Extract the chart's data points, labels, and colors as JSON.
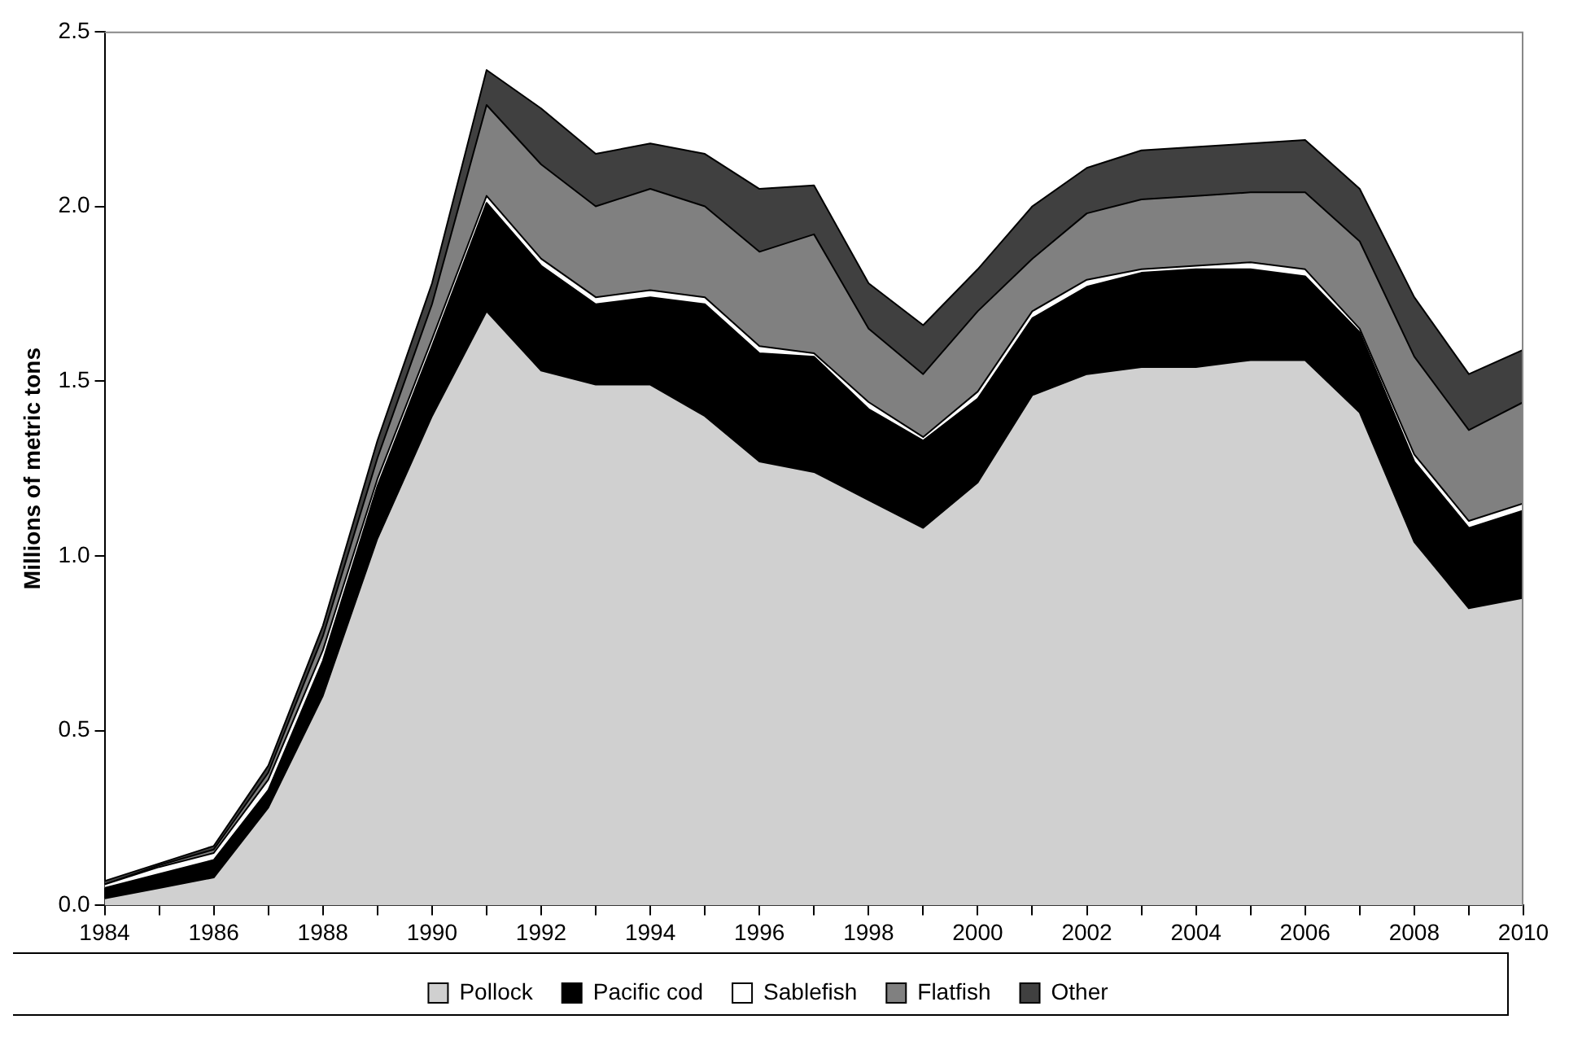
{
  "chart_data": {
    "type": "area",
    "stacked": true,
    "ylabel": "Millions of metric tons",
    "x": [
      1984,
      1985,
      1986,
      1987,
      1988,
      1989,
      1990,
      1991,
      1992,
      1993,
      1994,
      1995,
      1996,
      1997,
      1998,
      1999,
      2000,
      2001,
      2002,
      2003,
      2004,
      2005,
      2006,
      2007,
      2008,
      2009,
      2010
    ],
    "series": [
      {
        "name": "Pollock",
        "color": "#d0d0d0",
        "values": [
          0.02,
          0.05,
          0.08,
          0.28,
          0.6,
          1.05,
          1.4,
          1.7,
          1.53,
          1.49,
          1.49,
          1.4,
          1.27,
          1.24,
          1.16,
          1.08,
          1.21,
          1.46,
          1.52,
          1.54,
          1.54,
          1.56,
          1.56,
          1.41,
          1.04,
          0.85,
          0.88
        ]
      },
      {
        "name": "Pacific cod",
        "color": "#000000",
        "values": [
          0.03,
          0.04,
          0.05,
          0.05,
          0.1,
          0.15,
          0.2,
          0.31,
          0.3,
          0.23,
          0.25,
          0.32,
          0.31,
          0.33,
          0.26,
          0.25,
          0.24,
          0.22,
          0.25,
          0.27,
          0.28,
          0.26,
          0.24,
          0.23,
          0.23,
          0.23,
          0.25
        ]
      },
      {
        "name": "Sablefish",
        "color": "#ffffff",
        "values": [
          0.01,
          0.02,
          0.02,
          0.03,
          0.03,
          0.02,
          0.02,
          0.02,
          0.02,
          0.02,
          0.02,
          0.02,
          0.02,
          0.01,
          0.02,
          0.01,
          0.02,
          0.02,
          0.02,
          0.01,
          0.01,
          0.02,
          0.02,
          0.01,
          0.02,
          0.02,
          0.02
        ]
      },
      {
        "name": "Flatfish",
        "color": "#808080",
        "values": [
          0,
          0.005,
          0.01,
          0.02,
          0.04,
          0.06,
          0.1,
          0.26,
          0.27,
          0.26,
          0.29,
          0.26,
          0.27,
          0.34,
          0.21,
          0.18,
          0.23,
          0.15,
          0.19,
          0.2,
          0.2,
          0.2,
          0.22,
          0.25,
          0.28,
          0.26,
          0.29
        ]
      },
      {
        "name": "Other",
        "color": "#404040",
        "values": [
          0.01,
          0.005,
          0.01,
          0.02,
          0.03,
          0.05,
          0.06,
          0.1,
          0.16,
          0.15,
          0.13,
          0.15,
          0.18,
          0.14,
          0.13,
          0.14,
          0.12,
          0.15,
          0.13,
          0.14,
          0.14,
          0.14,
          0.15,
          0.15,
          0.17,
          0.16,
          0.15
        ]
      }
    ],
    "xlim": [
      1984,
      2010
    ],
    "xticks": [
      1984,
      {
        "value": 1985,
        "label": null
      },
      1986,
      {
        "value": 1987,
        "label": null
      },
      1988,
      {
        "value": 1989,
        "label": null
      },
      1990,
      {
        "value": 1991,
        "label": null
      },
      1992,
      {
        "value": 1993,
        "label": null
      },
      1994,
      {
        "value": 1995,
        "label": null
      },
      1996,
      {
        "value": 1997,
        "label": null
      },
      1998,
      {
        "value": 1999,
        "label": null
      },
      2000,
      {
        "value": 2001,
        "label": null
      },
      2002,
      {
        "value": 2003,
        "label": null
      },
      2004,
      {
        "value": 2005,
        "label": null
      },
      2006,
      {
        "value": 2007,
        "label": null
      },
      2008,
      {
        "value": 2009,
        "label": null
      },
      2010
    ],
    "ylim": [
      0,
      2.5
    ],
    "yticks": [
      {
        "value": 0,
        "label": "0.0"
      },
      {
        "value": 0.5,
        "label": "0.5"
      },
      {
        "value": 1,
        "label": "1.0"
      },
      {
        "value": 1.5,
        "label": "1.5"
      },
      {
        "value": 2,
        "label": "2.0"
      },
      {
        "value": 2.5,
        "label": "2.5"
      }
    ],
    "grid": false,
    "legend": "bottom"
  }
}
